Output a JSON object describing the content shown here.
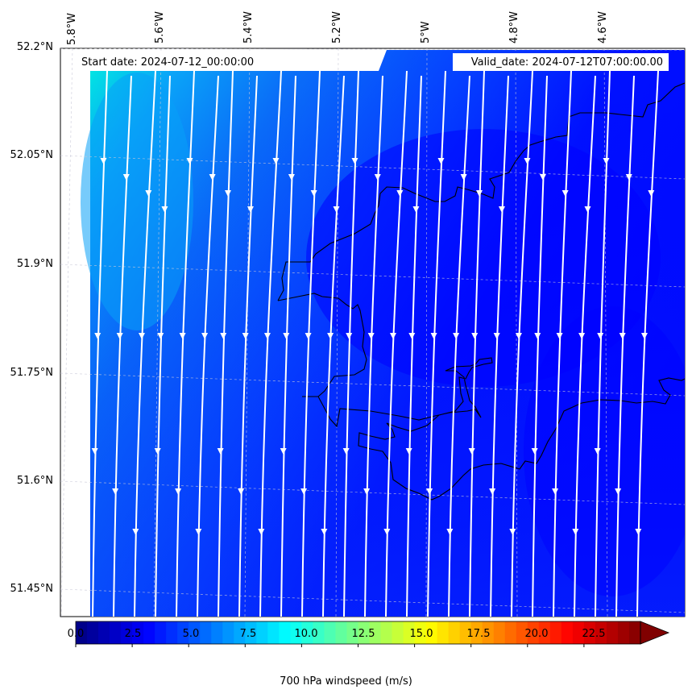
{
  "map": {
    "start_date": "Start date: 2024-07-12_00:00:00",
    "valid_date": "Valid_date: 2024-07-12T07:00:00.00",
    "lon_labels": [
      "5.8°W",
      "5.6°W",
      "5.4°W",
      "5.2°W",
      "5°W",
      "4.8°W",
      "4.6°W"
    ],
    "lat_labels": [
      "52.2°N",
      "52.05°N",
      "51.9°N",
      "51.75°N",
      "51.6°N",
      "51.45°N"
    ],
    "field": "700 hPa windspeed",
    "wind_direction": "southward (from north)",
    "colors": {
      "speed_low": "#0000ff",
      "speed_mid": "#0a6cf5",
      "speed_high": "#00f5e6",
      "streamline": "#ffffff",
      "coastline": "#000000"
    }
  },
  "colorbar": {
    "title": "700 hPa windspeed (m/s)",
    "tick_labels": [
      "0.0",
      "2.5",
      "5.0",
      "7.5",
      "10.0",
      "12.5",
      "15.0",
      "17.5",
      "20.0",
      "22.5"
    ],
    "min": 0,
    "max": 25,
    "extend": "max",
    "colormap": "jet"
  }
}
